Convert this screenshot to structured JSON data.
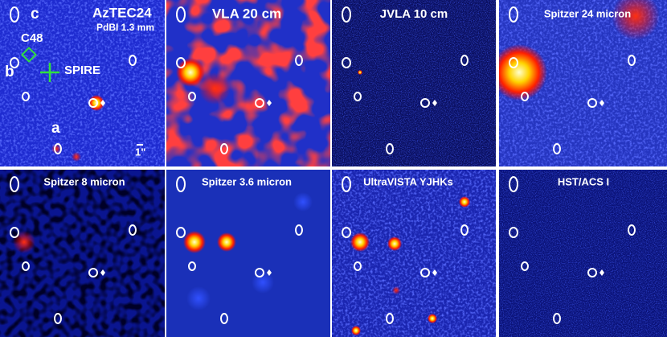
{
  "panels": [
    {
      "title": "AzTEC24",
      "subtitle": "PdBI 1.3 mm",
      "annotations": [
        "c",
        "C48",
        "b",
        "SPIRE",
        "a",
        "1\""
      ]
    },
    {
      "title": "VLA 20 cm"
    },
    {
      "title": "JVLA 10 cm"
    },
    {
      "title": "Spitzer 24 micron"
    },
    {
      "title": "Spitzer 8 micron"
    },
    {
      "title": "Spitzer 3.6 micron"
    },
    {
      "title": "UltraVISTA YJHKs"
    },
    {
      "title": "HST/ACS I"
    }
  ]
}
